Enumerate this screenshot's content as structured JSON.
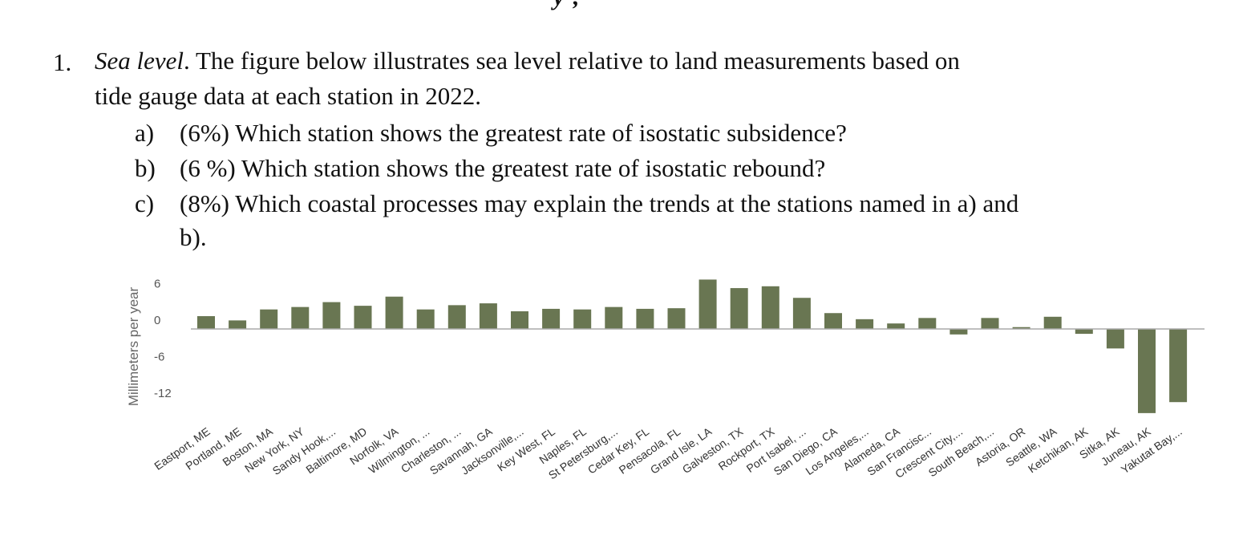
{
  "fragment_top": "y ,",
  "question": {
    "number": "1.",
    "title": "Sea level",
    "intro_line1": ". The figure below illustrates sea level relative to land measurements based on",
    "intro_line2": "tide gauge data at each station in 2022.",
    "parts": [
      {
        "key": "a)",
        "text": "(6%) Which station shows the greatest rate of isostatic subsidence?"
      },
      {
        "key": "b)",
        "text": "(6 %) Which station shows the greatest rate of isostatic rebound?"
      },
      {
        "key": "c)",
        "text": "(8%) Which coastal processes may explain the trends at the stations named in a) and"
      }
    ],
    "part_c_cont": "b)."
  },
  "chart_data": {
    "type": "bar",
    "ylabel": "Millimeters per year",
    "ylim": [
      -14.5,
      7.5
    ],
    "yticks": [
      6,
      0,
      -6,
      -12
    ],
    "ytick_labels": [
      "6",
      "0",
      "-6",
      "-12"
    ],
    "grid": false,
    "bar_color": "#697652",
    "axis_color": "#aaaaaa",
    "categories": [
      "Eastport, ME",
      "Portland, ME",
      "Boston, MA",
      "New York, NY",
      "Sandy Hook,...",
      "Baltimore, MD",
      "Norfolk, VA",
      "Wilmington, ...",
      "Charleston, ...",
      "Savannah, GA",
      "Jacksonville,...",
      "Key West, FL",
      "Naples, FL",
      "St Petersburg,...",
      "Cedar Key, FL",
      "Pensacola, FL",
      "Grand Isle, LA",
      "Galveston, TX",
      "Rockport, TX",
      "Port Isabel, ...",
      "San Diego, CA",
      "Los Angeles,...",
      "Alameda, CA",
      "San Francisc...",
      "Crescent City,...",
      "South Beach,...",
      "Astoria, OR",
      "Seattle, WA",
      "Ketchikan, AK",
      "Sitka, AK",
      "Juneau, AK",
      "Yakutat Bay,..."
    ],
    "values": [
      2.1,
      1.4,
      3.2,
      3.6,
      4.4,
      3.8,
      5.3,
      3.2,
      3.9,
      4.2,
      2.9,
      3.3,
      3.2,
      3.6,
      3.3,
      3.4,
      8.1,
      6.7,
      7.0,
      5.1,
      2.6,
      1.6,
      0.9,
      1.8,
      -0.9,
      1.8,
      0.3,
      2.0,
      -0.8,
      -3.2,
      -13.8,
      -12.0
    ]
  }
}
